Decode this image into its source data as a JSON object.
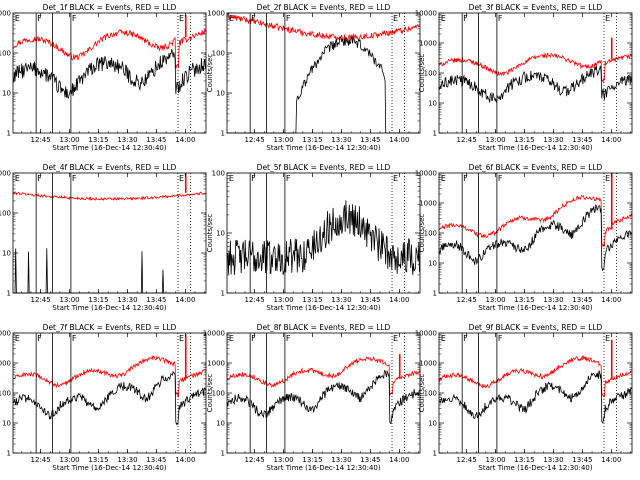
{
  "figure": {
    "panel_titles": [
      "Det_1f BLACK = Events, RED = LLD",
      "Det_2f BLACK = Events, RED = LLD",
      "Det_3f BLACK = Events, RED = LLD",
      "Det_4f BLACK = Events, RED = LLD",
      "Det_5f BLACK = Events, RED = LLD",
      "Det_6f BLACK = Events, RED = LLD",
      "Det_7f BLACK = Events, RED = LLD",
      "Det_8f BLACK = Events, RED = LLD",
      "Det_9f BLACK = Events, RED = LLD"
    ],
    "xlabel": "Start Time (16-Dec-14 12:30:40)",
    "ylabel": "Counts/sec",
    "x_ticks": [
      "12:45",
      "13:00",
      "13:15",
      "13:30",
      "13:45",
      "14:00"
    ],
    "region_markers": [
      "E",
      "F",
      "F",
      "E"
    ],
    "colors": {
      "events": "#000000",
      "lld": "#ff0000",
      "axes": "#000000"
    }
  },
  "chart_data": [
    {
      "type": "line",
      "title": "Det_1f BLACK = Events, RED = LLD",
      "xlabel": "Start Time (16-Dec-14 12:30:40)",
      "ylabel": "Counts/sec",
      "ylog": true,
      "ylim": [
        1,
        1000
      ],
      "y_ticks": [
        "1",
        "10",
        "100",
        "1000"
      ],
      "x_unit": "minutes after 12:30:40",
      "xlim": [
        0,
        100
      ],
      "solid_verticals": [
        12,
        20.5,
        30
      ],
      "dotted_verticals": [
        85.5,
        92
      ],
      "series": [
        {
          "color": "red",
          "shape": "lld_flat",
          "level": 250,
          "spike": 900
        },
        {
          "color": "black",
          "shape": "events_flat",
          "level": 50
        }
      ]
    },
    {
      "type": "line",
      "title": "Det_2f BLACK = Events, RED = LLD",
      "xlabel": "Start Time (16-Dec-14 12:30:40)",
      "ylabel": "Counts/sec",
      "ylog": true,
      "ylim": [
        1,
        1000
      ],
      "y_ticks": [
        "1",
        "10",
        "100",
        "1000"
      ],
      "x_unit": "minutes after 12:30:40",
      "xlim": [
        0,
        100
      ],
      "solid_verticals": [
        12,
        20.5,
        30
      ],
      "dotted_verticals": [
        85.5,
        92
      ],
      "series": [
        {
          "color": "red",
          "shape": "lld_bowl",
          "level": 450
        },
        {
          "color": "black",
          "shape": "events_bump",
          "peak": 200
        }
      ]
    },
    {
      "type": "line",
      "title": "Det_3f BLACK = Events, RED = LLD",
      "xlabel": "Start Time (16-Dec-14 12:30:40)",
      "ylabel": "Counts/sec",
      "ylog": true,
      "ylim": [
        1,
        10000
      ],
      "y_ticks": [
        "1",
        "10",
        "100",
        "1000",
        "10000"
      ],
      "x_unit": "minutes after 12:30:40",
      "xlim": [
        0,
        100
      ],
      "solid_verticals": [
        12,
        20.5,
        30
      ],
      "dotted_verticals": [
        85.5,
        92
      ],
      "series": [
        {
          "color": "red",
          "shape": "lld_flat",
          "level": 300,
          "spike": 1500
        },
        {
          "color": "black",
          "shape": "events_flat",
          "level": 70
        }
      ]
    },
    {
      "type": "line",
      "title": "Det_4f BLACK = Events, RED = LLD",
      "xlabel": "Start Time (16-Dec-14 12:30:40)",
      "ylabel": "Counts/sec",
      "ylog": true,
      "ylim": [
        1,
        1000
      ],
      "y_ticks": [
        "1",
        "10",
        "100",
        "1000"
      ],
      "x_unit": "minutes after 12:30:40",
      "xlim": [
        0,
        100
      ],
      "solid_verticals": [
        12,
        20.5,
        30
      ],
      "dotted_verticals": [
        85.5,
        92
      ],
      "series": [
        {
          "color": "red",
          "shape": "lld_arch",
          "level": 320,
          "spike": 1000
        },
        {
          "color": "black",
          "shape": "events_sparse",
          "level": 1
        }
      ]
    },
    {
      "type": "line",
      "title": "Det_5f BLACK = Events, RED = LLD",
      "xlabel": "Start Time (16-Dec-14 12:30:40)",
      "ylabel": "Counts/sec",
      "ylog": true,
      "ylim": [
        1,
        100
      ],
      "y_ticks": [
        "1",
        "10",
        "100"
      ],
      "x_unit": "minutes after 12:30:40",
      "xlim": [
        0,
        100
      ],
      "solid_verticals": [
        12,
        20.5,
        30
      ],
      "dotted_verticals": [
        85.5,
        92
      ],
      "series": [
        {
          "color": "black",
          "shape": "events_noisy",
          "level": 4,
          "peak": 15
        }
      ]
    },
    {
      "type": "line",
      "title": "Det_6f BLACK = Events, RED = LLD",
      "xlabel": "Start Time (16-Dec-14 12:30:40)",
      "ylabel": "Counts/sec",
      "ylog": true,
      "ylim": [
        1,
        10000
      ],
      "y_ticks": [
        "1",
        "10",
        "100",
        "1000",
        "10000"
      ],
      "x_unit": "minutes after 12:30:40",
      "xlim": [
        0,
        100
      ],
      "solid_verticals": [
        12,
        20.5,
        30
      ],
      "dotted_verticals": [
        85.5,
        92
      ],
      "series": [
        {
          "color": "red",
          "shape": "lld_rising",
          "level": 130,
          "end": 2000,
          "spike": 10000
        },
        {
          "color": "black",
          "shape": "events_rising",
          "level": 40,
          "end": 700
        }
      ]
    },
    {
      "type": "line",
      "title": "Det_7f BLACK = Events, RED = LLD",
      "xlabel": "Start Time (16-Dec-14 12:30:40)",
      "ylabel": "Counts/sec",
      "ylog": true,
      "ylim": [
        1,
        10000
      ],
      "y_ticks": [
        "1",
        "10",
        "100",
        "1000",
        "10000"
      ],
      "x_unit": "minutes after 12:30:40",
      "xlim": [
        0,
        100
      ],
      "solid_verticals": [
        12,
        20.5,
        30
      ],
      "dotted_verticals": [
        85.5,
        92
      ],
      "series": [
        {
          "color": "red",
          "shape": "lld_rising",
          "level": 300,
          "end": 1500,
          "spike": 9000
        },
        {
          "color": "black",
          "shape": "events_rising",
          "level": 60,
          "end": 400
        }
      ]
    },
    {
      "type": "line",
      "title": "Det_8f BLACK = Events, RED = LLD",
      "xlabel": "Start Time (16-Dec-14 12:30:40)",
      "ylabel": "Counts/sec",
      "ylog": true,
      "ylim": [
        1,
        10000
      ],
      "y_ticks": [
        "1",
        "10",
        "100",
        "1000",
        "10000"
      ],
      "x_unit": "minutes after 12:30:40",
      "xlim": [
        0,
        100
      ],
      "solid_verticals": [
        12,
        20.5,
        30
      ],
      "dotted_verticals": [
        85.5,
        92
      ],
      "series": [
        {
          "color": "red",
          "shape": "lld_rising",
          "level": 300,
          "end": 1500,
          "spike": 2000
        },
        {
          "color": "black",
          "shape": "events_rising",
          "level": 60,
          "end": 400
        }
      ]
    },
    {
      "type": "line",
      "title": "Det_9f BLACK = Events, RED = LLD",
      "xlabel": "Start Time (16-Dec-14 12:30:40)",
      "ylabel": "Counts/sec",
      "ylog": true,
      "ylim": [
        1,
        10000
      ],
      "y_ticks": [
        "1",
        "10",
        "100",
        "1000",
        "10000"
      ],
      "x_unit": "minutes after 12:30:40",
      "xlim": [
        0,
        100
      ],
      "solid_verticals": [
        12,
        20.5,
        30
      ],
      "dotted_verticals": [
        85.5,
        92
      ],
      "series": [
        {
          "color": "red",
          "shape": "lld_rising",
          "level": 280,
          "end": 1500,
          "spike": 6000
        },
        {
          "color": "black",
          "shape": "events_rising",
          "level": 60,
          "end": 400
        }
      ]
    }
  ]
}
